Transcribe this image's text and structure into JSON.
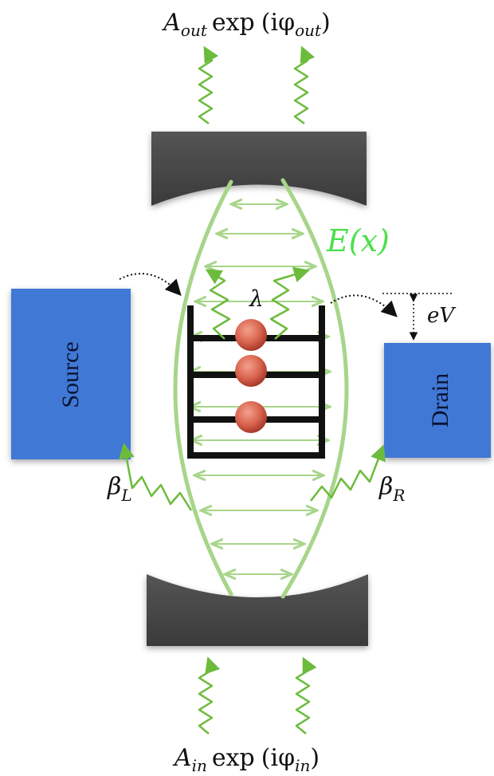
{
  "labels": {
    "output_amp": "A",
    "output_amp_sub": "out",
    "output_exp": "exp",
    "output_phase": "(iφ",
    "output_phase_sub": "out",
    "output_close": ")",
    "input_amp": "A",
    "input_amp_sub": "in",
    "input_exp": "exp",
    "input_phase": "(iφ",
    "input_phase_sub": "in",
    "input_close": ")",
    "field": "E(x)",
    "coupling": "λ",
    "bias": "eV",
    "beta_left": "β",
    "beta_left_sub": "L",
    "beta_right": "β",
    "beta_right_sub": "R",
    "source": "Source",
    "drain": "Drain"
  },
  "colors": {
    "mirror": "#4a4a4a",
    "lead": "#3f78d6",
    "photon": "#6dbb3c",
    "field": "#a7d58a",
    "electron": "#d96a56",
    "ladder": "#111111"
  },
  "electron_count": 3,
  "ladder_levels": 4
}
